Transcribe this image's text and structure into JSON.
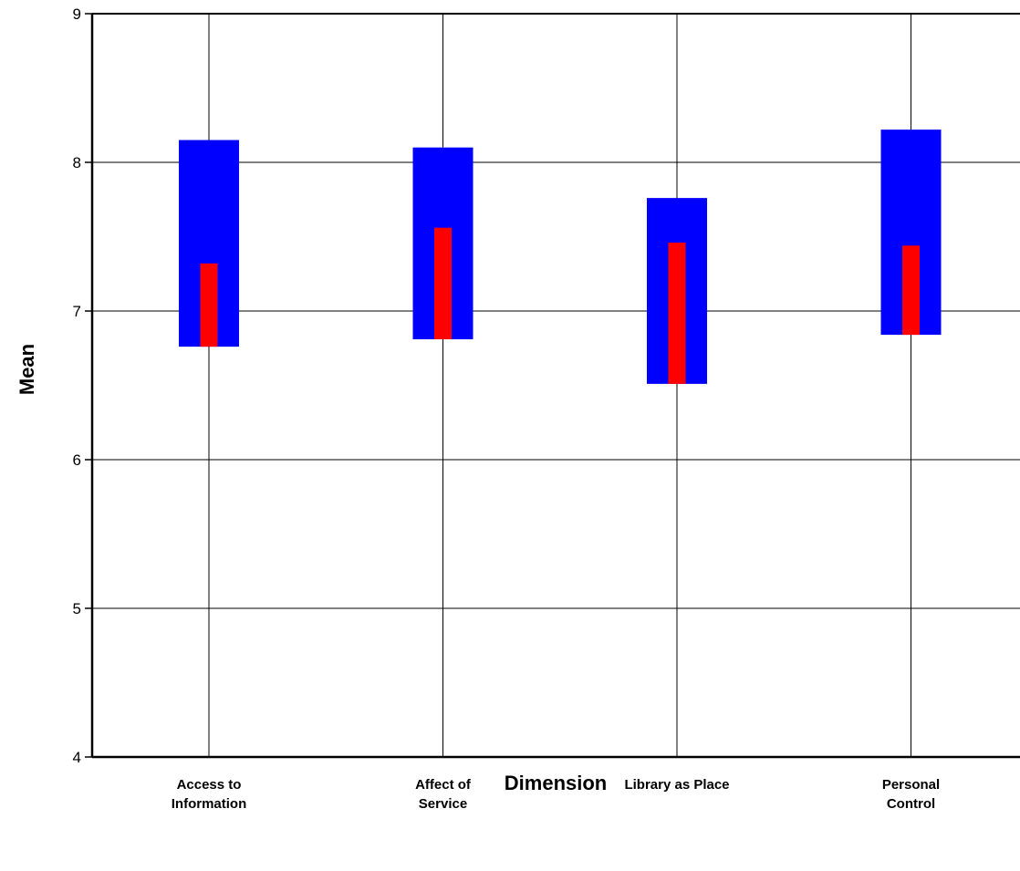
{
  "chart_data": {
    "type": "bar",
    "title": "",
    "xlabel": "Dimension",
    "ylabel": "Mean",
    "ylim": [
      4,
      9
    ],
    "yticks": [
      "4",
      "5",
      "6",
      "7",
      "8",
      "9"
    ],
    "grid": true,
    "categories": [
      [
        "Access to",
        "Information"
      ],
      [
        "Affect of",
        "Service"
      ],
      [
        "Library as Place"
      ],
      [
        "Personal",
        "Control"
      ]
    ],
    "series": [
      {
        "color": "#0000ff",
        "values": [
          {
            "low": 6.76,
            "high": 8.15
          },
          {
            "low": 6.81,
            "high": 8.1
          },
          {
            "low": 6.51,
            "high": 7.76
          },
          {
            "low": 6.84,
            "high": 8.22
          }
        ]
      },
      {
        "color": "#ff0000",
        "values": [
          {
            "low": 6.76,
            "high": 7.32
          },
          {
            "low": 6.81,
            "high": 7.56
          },
          {
            "low": 6.51,
            "high": 7.46
          },
          {
            "low": 6.84,
            "high": 7.44
          }
        ]
      }
    ]
  }
}
